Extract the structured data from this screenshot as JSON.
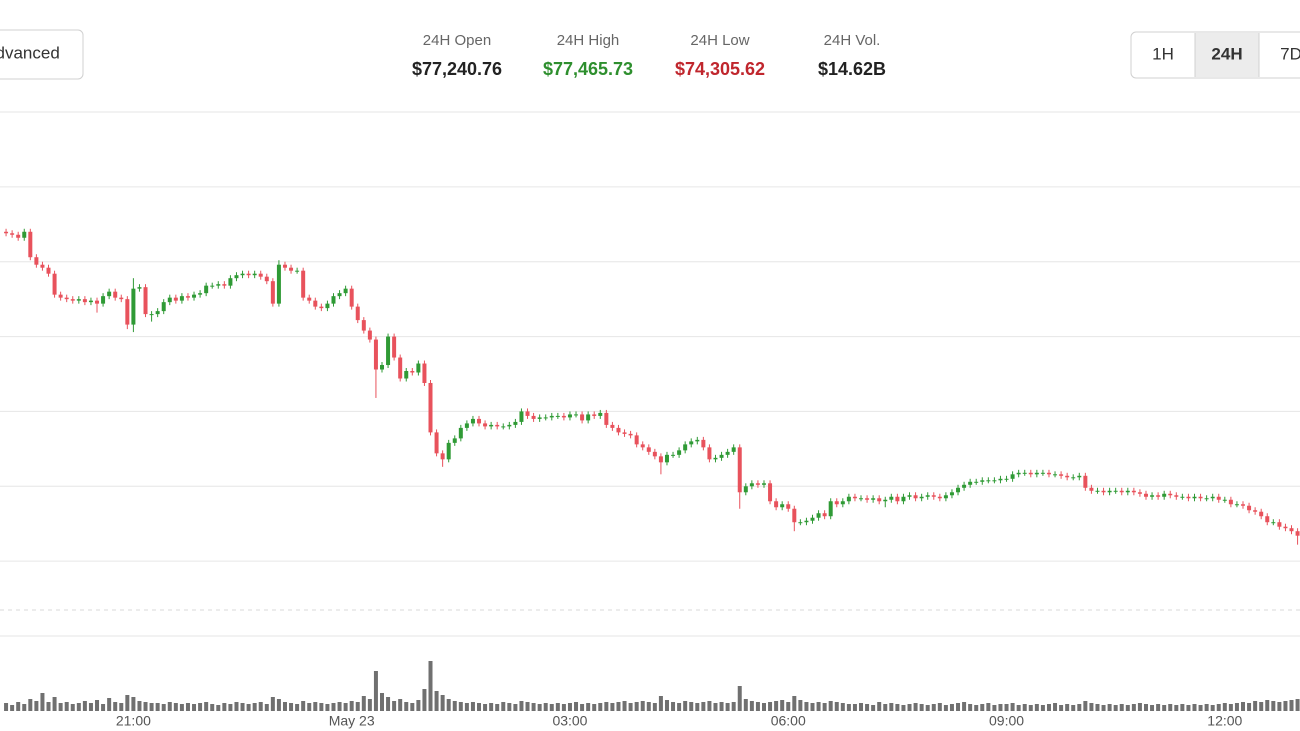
{
  "header": {
    "advanced_button": "Advanced",
    "stats": [
      {
        "label": "24H Open",
        "value": "$77,240.76",
        "color": "#222222"
      },
      {
        "label": "24H High",
        "value": "$77,465.73",
        "color": "#2e8f2e"
      },
      {
        "label": "24H Low",
        "value": "$74,305.62",
        "color": "#c0262d"
      },
      {
        "label": "24H Vol.",
        "value": "$14.62B",
        "color": "#222222"
      }
    ],
    "range_buttons": [
      {
        "label": "1H",
        "selected": false
      },
      {
        "label": "24H",
        "selected": true
      },
      {
        "label": "7D",
        "selected": false
      }
    ]
  },
  "chart_data": {
    "type": "candlestick",
    "x": [
      -285,
      -280,
      -275,
      -270,
      -265,
      -260,
      -255,
      -250,
      -245,
      -240,
      -235,
      -230,
      -225,
      -220,
      -215,
      -210,
      -205,
      -200,
      -195,
      -190,
      -185,
      -180,
      -175,
      -170,
      -165,
      -160,
      -155,
      -150,
      -145,
      -140,
      -135,
      -130,
      -125,
      -120,
      -115,
      -110,
      -105,
      -100,
      -95,
      -90,
      -85,
      -80,
      -75,
      -70,
      -65,
      -60,
      -55,
      -50,
      -45,
      -40,
      -35,
      -30,
      -25,
      -20,
      -15,
      -10,
      -5,
      0,
      5,
      10,
      15,
      20,
      25,
      30,
      35,
      40,
      45,
      50,
      55,
      60,
      65,
      70,
      75,
      80,
      85,
      90,
      95,
      100,
      105,
      110,
      115,
      120,
      125,
      130,
      135,
      140,
      145,
      150,
      155,
      160,
      165,
      170,
      175,
      180,
      185,
      190,
      195,
      200,
      205,
      210,
      215,
      220,
      225,
      230,
      235,
      240,
      245,
      250,
      255,
      260,
      265,
      270,
      275,
      280,
      285,
      290,
      295,
      300,
      305,
      310,
      315,
      320,
      325,
      330,
      335,
      340,
      345,
      350,
      355,
      360,
      365,
      370,
      375,
      380,
      385,
      390,
      395,
      400,
      405,
      410,
      415,
      420,
      425,
      430,
      435,
      440,
      445,
      450,
      455,
      460,
      465,
      470,
      475,
      480,
      485,
      490,
      495,
      500,
      505,
      510,
      515,
      520,
      525,
      530,
      535,
      540,
      545,
      550,
      555,
      560,
      565,
      570,
      575,
      580,
      585,
      590,
      595,
      600,
      605,
      610,
      615,
      620,
      625,
      630,
      635,
      640,
      645,
      650,
      655,
      660,
      665,
      670,
      675,
      680,
      685,
      690,
      695,
      700,
      705,
      710,
      715,
      720,
      725,
      730,
      735,
      740,
      745,
      750,
      755,
      760,
      765,
      770,
      775,
      780
    ],
    "open": [
      76700,
      76690,
      76680,
      76660,
      76700,
      76530,
      76480,
      76460,
      76420,
      76280,
      76260,
      76250,
      76240,
      76250,
      76230,
      76240,
      76220,
      76270,
      76300,
      76260,
      76250,
      76080,
      76320,
      76330,
      76150,
      76150,
      76170,
      76230,
      76260,
      76240,
      76270,
      76260,
      76280,
      76290,
      76340,
      76340,
      76350,
      76340,
      76390,
      76410,
      76420,
      76410,
      76420,
      76400,
      76370,
      76220,
      76480,
      76460,
      76440,
      76440,
      76260,
      76240,
      76200,
      76190,
      76220,
      76270,
      76290,
      76320,
      76200,
      76110,
      76040,
      75980,
      75780,
      75810,
      76000,
      75860,
      75720,
      75770,
      75760,
      75820,
      75690,
      75360,
      75220,
      75180,
      75290,
      75320,
      75390,
      75420,
      75450,
      75420,
      75400,
      75410,
      75400,
      75400,
      75410,
      75430,
      75500,
      75470,
      75450,
      75460,
      75460,
      75470,
      75470,
      75460,
      75480,
      75480,
      75440,
      75480,
      75470,
      75490,
      75410,
      75390,
      75360,
      75350,
      75340,
      75280,
      75260,
      75230,
      75200,
      75160,
      75210,
      75210,
      75240,
      75280,
      75300,
      75310,
      75260,
      75180,
      75190,
      75210,
      75230,
      75260,
      74960,
      75000,
      75020,
      75010,
      75020,
      74900,
      74860,
      74880,
      74850,
      74760,
      74760,
      74770,
      74790,
      74820,
      74800,
      74900,
      74880,
      74900,
      74930,
      74920,
      74920,
      74910,
      74920,
      74900,
      74910,
      74930,
      74900,
      74930,
      74940,
      74920,
      74930,
      74940,
      74930,
      74920,
      74940,
      74960,
      74990,
      75010,
      75030,
      75030,
      75040,
      75040,
      75040,
      75050,
      75050,
      75080,
      75090,
      75090,
      75080,
      75090,
      75090,
      75080,
      75080,
      75070,
      75060,
      75060,
      75070,
      74990,
      74970,
      74970,
      74960,
      74970,
      74970,
      74960,
      74970,
      74960,
      74950,
      74930,
      74940,
      74930,
      74950,
      74940,
      74930,
      74930,
      74920,
      74930,
      74920,
      74920,
      74930,
      74910,
      74910,
      74880,
      74880,
      74870,
      74840,
      74830,
      74800,
      74760,
      74760,
      74730,
      74720,
      74700
    ],
    "high": [
      76720,
      76710,
      76700,
      76720,
      76720,
      76550,
      76500,
      76480,
      76440,
      76300,
      76280,
      76270,
      76270,
      76270,
      76260,
      76260,
      76290,
      76320,
      76320,
      76280,
      76270,
      76390,
      76350,
      76350,
      76170,
      76190,
      76250,
      76280,
      76280,
      76290,
      76290,
      76300,
      76310,
      76360,
      76360,
      76370,
      76370,
      76410,
      76430,
      76440,
      76440,
      76440,
      76440,
      76420,
      76390,
      76510,
      76500,
      76480,
      76460,
      76460,
      76280,
      76260,
      76220,
      76240,
      76290,
      76310,
      76340,
      76340,
      76220,
      76130,
      76060,
      76000,
      75830,
      76020,
      76020,
      75880,
      75790,
      75790,
      75840,
      75840,
      75710,
      75380,
      75240,
      75310,
      75340,
      75410,
      75440,
      75470,
      75470,
      75440,
      75430,
      75430,
      75420,
      75430,
      75450,
      75520,
      75520,
      75490,
      75480,
      75480,
      75490,
      75490,
      75490,
      75500,
      75500,
      75500,
      75500,
      75500,
      75510,
      75510,
      75430,
      75410,
      75380,
      75370,
      75360,
      75300,
      75280,
      75250,
      75220,
      75230,
      75230,
      75260,
      75300,
      75320,
      75330,
      75330,
      75280,
      75210,
      75230,
      75250,
      75280,
      75280,
      75020,
      75040,
      75040,
      75040,
      75040,
      74920,
      74900,
      74900,
      74870,
      74780,
      74790,
      74810,
      74840,
      74840,
      74920,
      74920,
      74920,
      74950,
      74950,
      74940,
      74940,
      74940,
      74940,
      74930,
      74950,
      74950,
      74950,
      74960,
      74960,
      74950,
      74960,
      74960,
      74950,
      74960,
      74980,
      75010,
      75030,
      75050,
      75050,
      75060,
      75060,
      75060,
      75070,
      75070,
      75100,
      75110,
      75110,
      75110,
      75110,
      75110,
      75110,
      75100,
      75100,
      75090,
      75080,
      75090,
      75090,
      75010,
      74990,
      74990,
      74990,
      74990,
      74990,
      74990,
      74990,
      74980,
      74970,
      74960,
      74960,
      74970,
      74970,
      74960,
      74950,
      74950,
      74950,
      74950,
      74940,
      74950,
      74950,
      74930,
      74930,
      74900,
      74900,
      74890,
      74860,
      74850,
      74820,
      74780,
      74780,
      74750,
      74740,
      74720
    ],
    "low": [
      76670,
      76660,
      76640,
      76640,
      76510,
      76460,
      76440,
      76400,
      76260,
      76240,
      76230,
      76220,
      76220,
      76210,
      76210,
      76160,
      76200,
      76250,
      76240,
      76230,
      76050,
      76030,
      76300,
      76130,
      76100,
      76130,
      76150,
      76210,
      76220,
      76220,
      76240,
      76240,
      76260,
      76270,
      76320,
      76320,
      76320,
      76320,
      76370,
      76390,
      76390,
      76390,
      76380,
      76350,
      76200,
      76200,
      76440,
      76420,
      76420,
      76240,
      76220,
      76180,
      76170,
      76170,
      76200,
      76250,
      76270,
      76180,
      76090,
      76020,
      75960,
      75590,
      75760,
      75790,
      75840,
      75700,
      75700,
      75740,
      75740,
      75670,
      75340,
      75200,
      75130,
      75160,
      75270,
      75300,
      75370,
      75400,
      75400,
      75380,
      75380,
      75380,
      75380,
      75380,
      75390,
      75410,
      75450,
      75430,
      75430,
      75440,
      75440,
      75450,
      75440,
      75440,
      75460,
      75420,
      75420,
      75450,
      75450,
      75390,
      75370,
      75340,
      75330,
      75320,
      75260,
      75240,
      75210,
      75180,
      75080,
      75140,
      75190,
      75190,
      75220,
      75260,
      75280,
      75240,
      75160,
      75160,
      75170,
      75190,
      75210,
      74850,
      74940,
      74980,
      74990,
      74990,
      74880,
      74840,
      74840,
      74830,
      74700,
      74740,
      74740,
      74750,
      74770,
      74780,
      74780,
      74860,
      74860,
      74880,
      74900,
      74900,
      74890,
      74890,
      74880,
      74860,
      74890,
      74880,
      74880,
      74910,
      74900,
      74900,
      74910,
      74910,
      74900,
      74900,
      74920,
      74940,
      74970,
      74990,
      75010,
      75010,
      75020,
      75020,
      75020,
      75030,
      75030,
      75060,
      75070,
      75060,
      75060,
      75070,
      75060,
      75060,
      75050,
      75040,
      75040,
      75040,
      74970,
      74950,
      74950,
      74940,
      74940,
      74950,
      74940,
      74940,
      74940,
      74930,
      74910,
      74910,
      74910,
      74910,
      74920,
      74910,
      74910,
      74900,
      74900,
      74900,
      74900,
      74900,
      74890,
      74890,
      74860,
      74860,
      74850,
      74820,
      74810,
      74780,
      74740,
      74740,
      74710,
      74700,
      74680,
      74610
    ],
    "close": [
      76690,
      76680,
      76660,
      76700,
      76530,
      76480,
      76460,
      76420,
      76280,
      76260,
      76250,
      76240,
      76250,
      76230,
      76240,
      76220,
      76270,
      76300,
      76260,
      76250,
      76080,
      76320,
      76330,
      76150,
      76150,
      76170,
      76230,
      76260,
      76240,
      76270,
      76260,
      76280,
      76290,
      76340,
      76340,
      76350,
      76340,
      76390,
      76410,
      76420,
      76410,
      76420,
      76400,
      76370,
      76220,
      76480,
      76460,
      76440,
      76440,
      76260,
      76240,
      76200,
      76190,
      76220,
      76270,
      76290,
      76320,
      76200,
      76110,
      76040,
      75980,
      75780,
      75810,
      76000,
      75860,
      75720,
      75770,
      75760,
      75820,
      75690,
      75360,
      75220,
      75180,
      75290,
      75320,
      75390,
      75420,
      75450,
      75420,
      75400,
      75410,
      75400,
      75400,
      75410,
      75430,
      75500,
      75470,
      75450,
      75460,
      75460,
      75470,
      75470,
      75460,
      75480,
      75480,
      75440,
      75480,
      75470,
      75490,
      75410,
      75390,
      75360,
      75350,
      75340,
      75280,
      75260,
      75230,
      75200,
      75160,
      75210,
      75210,
      75240,
      75280,
      75300,
      75310,
      75260,
      75180,
      75190,
      75210,
      75230,
      75260,
      74960,
      75000,
      75020,
      75010,
      75020,
      74900,
      74860,
      74880,
      74850,
      74760,
      74760,
      74770,
      74790,
      74820,
      74800,
      74900,
      74880,
      74900,
      74930,
      74920,
      74920,
      74910,
      74920,
      74900,
      74910,
      74930,
      74900,
      74930,
      74940,
      74920,
      74930,
      74940,
      74930,
      74920,
      74940,
      74960,
      74990,
      75010,
      75030,
      75030,
      75040,
      75040,
      75040,
      75050,
      75050,
      75080,
      75090,
      75090,
      75080,
      75090,
      75090,
      75080,
      75080,
      75070,
      75060,
      75060,
      75070,
      74990,
      74970,
      74970,
      74960,
      74970,
      74970,
      74960,
      74970,
      74960,
      74950,
      74930,
      74940,
      74930,
      74950,
      74940,
      74930,
      74930,
      74920,
      74930,
      74920,
      74920,
      74930,
      74910,
      74910,
      74880,
      74880,
      74870,
      74840,
      74830,
      74800,
      74760,
      74760,
      74730,
      74720,
      74700,
      74670
    ],
    "volume": [
      8,
      6,
      9,
      7,
      12,
      10,
      18,
      9,
      14,
      8,
      9,
      7,
      8,
      10,
      8,
      11,
      7,
      13,
      9,
      8,
      16,
      14,
      10,
      9,
      8,
      8,
      7,
      9,
      8,
      7,
      8,
      7,
      8,
      9,
      7,
      6,
      8,
      7,
      9,
      8,
      7,
      8,
      9,
      7,
      14,
      12,
      9,
      8,
      7,
      10,
      8,
      9,
      8,
      7,
      8,
      9,
      8,
      10,
      9,
      15,
      12,
      40,
      18,
      14,
      10,
      12,
      9,
      8,
      11,
      22,
      50,
      20,
      16,
      12,
      10,
      9,
      8,
      9,
      8,
      7,
      8,
      7,
      9,
      8,
      7,
      10,
      9,
      8,
      7,
      8,
      7,
      8,
      7,
      8,
      9,
      7,
      8,
      7,
      8,
      9,
      8,
      9,
      10,
      8,
      9,
      10,
      9,
      8,
      15,
      11,
      9,
      8,
      10,
      9,
      8,
      9,
      10,
      8,
      9,
      8,
      9,
      25,
      12,
      10,
      9,
      8,
      9,
      10,
      11,
      9,
      15,
      11,
      9,
      8,
      9,
      8,
      10,
      9,
      8,
      7,
      7,
      8,
      7,
      6,
      9,
      7,
      8,
      7,
      6,
      7,
      8,
      7,
      6,
      7,
      8,
      6,
      7,
      8,
      9,
      7,
      6,
      7,
      8,
      6,
      7,
      7,
      8,
      6,
      7,
      6,
      7,
      6,
      7,
      8,
      6,
      7,
      6,
      7,
      10,
      8,
      7,
      6,
      7,
      6,
      7,
      6,
      7,
      8,
      7,
      6,
      7,
      6,
      7,
      6,
      7,
      6,
      7,
      6,
      7,
      6,
      7,
      8,
      7,
      8,
      9,
      8,
      10,
      9,
      11,
      10,
      9,
      10,
      11,
      12
    ],
    "xlim": [
      -290,
      782
    ],
    "xticks": [
      {
        "value": -180,
        "label": "21:00"
      },
      {
        "value": 0,
        "label": "May 23"
      },
      {
        "value": 180,
        "label": "03:00"
      },
      {
        "value": 360,
        "label": "06:00"
      },
      {
        "value": 540,
        "label": "09:00"
      },
      {
        "value": 720,
        "label": "12:00"
      }
    ],
    "ylim": [
      74000,
      77500
    ],
    "yticks": [
      74000,
      74500,
      75000,
      75500,
      76000,
      76500,
      77000,
      77500
    ],
    "vlim": [
      0,
      60
    ],
    "grid": true,
    "up_color": "#2f9a35",
    "down_color": "#e8525c",
    "volume_color": "#707070"
  }
}
